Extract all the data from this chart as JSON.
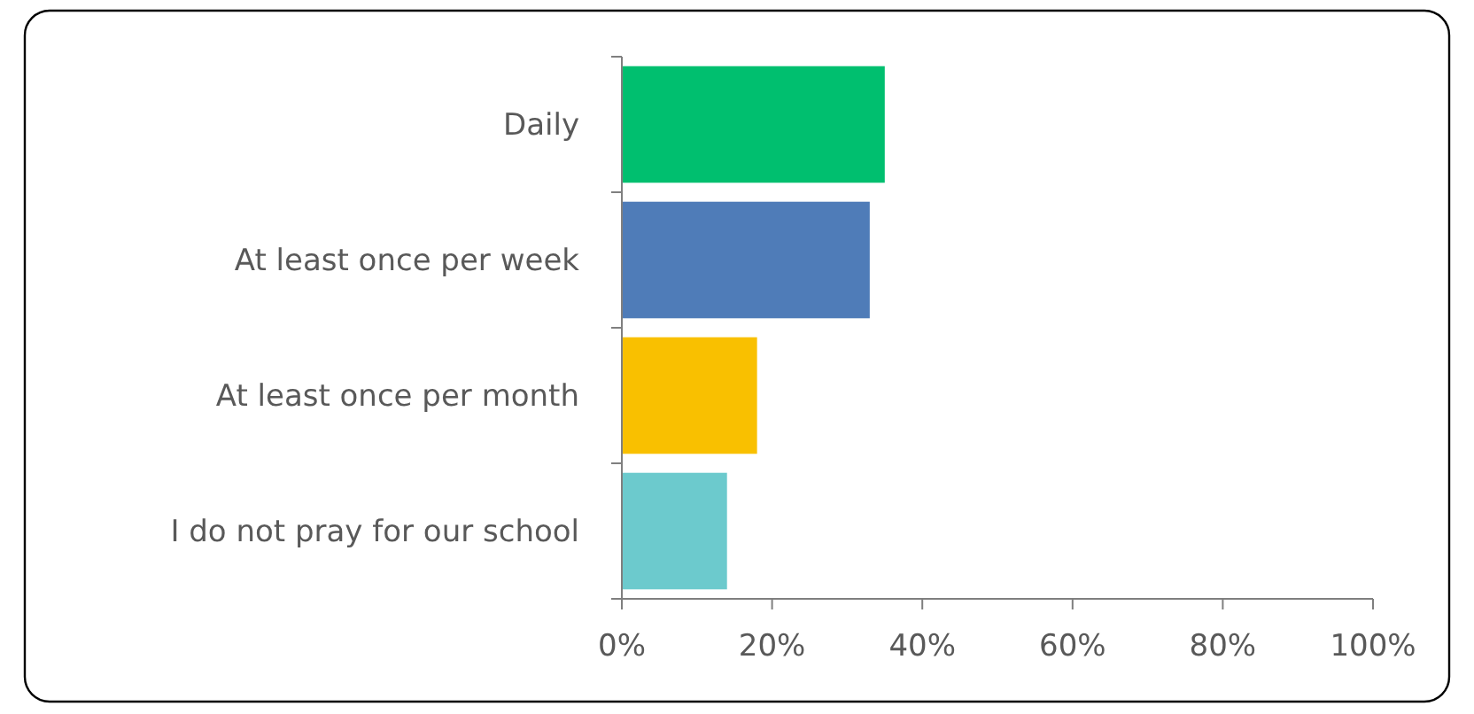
{
  "chart_data": {
    "type": "bar",
    "orientation": "horizontal",
    "categories": [
      "Daily",
      "At least once per week",
      "At least once per month",
      "I do not pray for our school"
    ],
    "values": [
      35,
      33,
      18,
      14
    ],
    "colors": [
      "#00bf6f",
      "#4f7cb8",
      "#f9c000",
      "#6ccacd"
    ],
    "xlim": [
      0,
      100
    ],
    "xticks": [
      {
        "value": 0,
        "label": "0%"
      },
      {
        "value": 20,
        "label": "20%"
      },
      {
        "value": 40,
        "label": "40%"
      },
      {
        "value": 60,
        "label": "60%"
      },
      {
        "value": 80,
        "label": "80%"
      },
      {
        "value": 100,
        "label": "100%"
      }
    ],
    "grid": false
  }
}
